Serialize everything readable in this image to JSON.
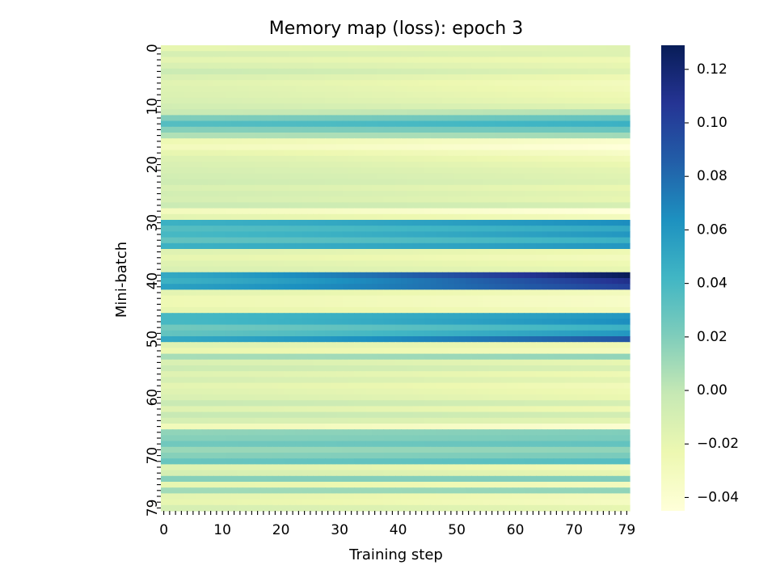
{
  "chart_data": {
    "type": "heatmap",
    "title": "Memory map (loss): epoch 3",
    "xlabel": "Training step",
    "ylabel": "Mini-batch",
    "x_range": [
      0,
      79
    ],
    "y_range": [
      0,
      79
    ],
    "x_tick_labels": [
      "0",
      "10",
      "20",
      "30",
      "40",
      "50",
      "60",
      "70",
      "79"
    ],
    "y_tick_labels": [
      "0",
      "10",
      "20",
      "30",
      "40",
      "50",
      "60",
      "70",
      "79"
    ],
    "colormap": "YlGnBu",
    "colormap_stops": [
      "#ffffd9",
      "#edf8b1",
      "#c7e9b4",
      "#7fcdbb",
      "#41b6c4",
      "#1d91c0",
      "#225ea8",
      "#253494",
      "#081d58"
    ],
    "vmin": -0.045,
    "vmax": 0.129,
    "colorbar_ticks": [
      0.12,
      0.1,
      0.08,
      0.06,
      0.04,
      0.02,
      0.0,
      -0.02,
      -0.04
    ],
    "colorbar_tick_labels": [
      "0.12",
      "0.10",
      "0.08",
      "0.06",
      "0.04",
      "0.02",
      "0.00",
      "−0.02",
      "−0.04"
    ],
    "row_start_values": [
      -0.02,
      -0.01,
      -0.018,
      -0.012,
      -0.004,
      -0.012,
      -0.016,
      -0.014,
      -0.013,
      -0.011,
      -0.008,
      -0.003,
      0.02,
      0.035,
      0.018,
      0.005,
      -0.025,
      -0.03,
      -0.02,
      -0.014,
      -0.012,
      -0.01,
      -0.008,
      -0.006,
      -0.012,
      -0.008,
      -0.01,
      -0.004,
      -0.03,
      -0.018,
      0.045,
      0.035,
      0.04,
      0.03,
      0.045,
      -0.015,
      -0.02,
      -0.015,
      -0.012,
      0.05,
      0.045,
      0.055,
      -0.018,
      -0.025,
      -0.025,
      -0.02,
      0.04,
      0.04,
      0.025,
      0.03,
      0.05,
      -0.015,
      -0.022,
      0.008,
      -0.012,
      -0.005,
      -0.015,
      -0.01,
      -0.018,
      -0.015,
      -0.012,
      -0.003,
      -0.015,
      -0.002,
      -0.01,
      -0.028,
      0.015,
      0.018,
      0.025,
      0.012,
      0.018,
      0.028,
      -0.015,
      -0.01,
      0.018,
      -0.02,
      0.01,
      -0.018,
      -0.02,
      -0.01
    ],
    "row_end_values": [
      -0.015,
      -0.015,
      -0.025,
      -0.02,
      -0.015,
      -0.025,
      -0.03,
      -0.028,
      -0.025,
      -0.022,
      -0.015,
      0.005,
      0.03,
      0.045,
      0.028,
      0.01,
      -0.038,
      -0.045,
      -0.035,
      -0.028,
      -0.022,
      -0.018,
      -0.016,
      -0.014,
      -0.022,
      -0.018,
      -0.02,
      -0.01,
      -0.045,
      -0.03,
      0.065,
      0.05,
      0.06,
      0.045,
      0.06,
      -0.025,
      -0.03,
      -0.025,
      -0.02,
      0.129,
      0.11,
      0.1,
      -0.03,
      -0.035,
      -0.035,
      -0.03,
      0.06,
      0.065,
      0.045,
      0.06,
      0.09,
      -0.025,
      -0.03,
      0.015,
      -0.02,
      -0.012,
      -0.025,
      -0.018,
      -0.028,
      -0.025,
      -0.022,
      -0.01,
      -0.025,
      -0.008,
      -0.018,
      -0.04,
      0.02,
      0.022,
      0.03,
      0.015,
      0.022,
      0.035,
      -0.028,
      -0.02,
      0.02,
      -0.03,
      0.015,
      -0.03,
      -0.032,
      -0.02
    ]
  }
}
